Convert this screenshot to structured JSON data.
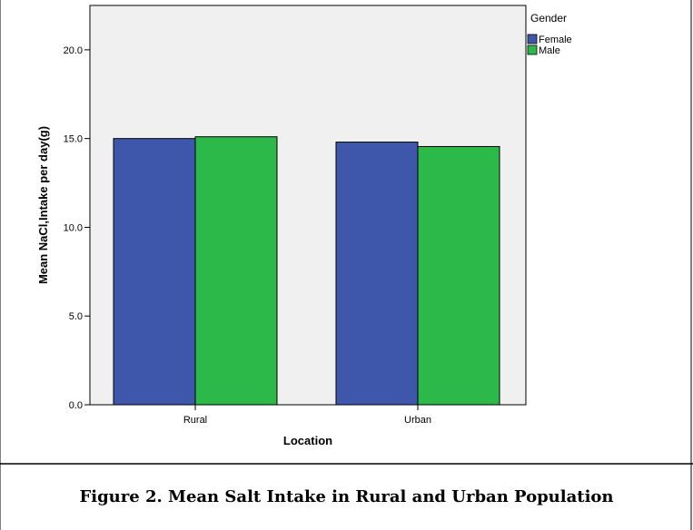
{
  "caption": "Figure 2. Mean Salt Intake in Rural and Urban Population",
  "chart_data": {
    "type": "bar",
    "categories": [
      "Rural",
      "Urban"
    ],
    "series": [
      {
        "name": "Female",
        "color": "#3f57aa",
        "values": [
          15.0,
          14.8
        ]
      },
      {
        "name": "Male",
        "color": "#2db84a",
        "values": [
          15.1,
          14.55
        ]
      }
    ],
    "xlabel": "Location",
    "ylabel": "Mean NaCl,Intake per day(g)",
    "yticks": [
      "0.0",
      "5.0",
      "10.0",
      "15.0",
      "20.0"
    ],
    "ylim": [
      0,
      22.5
    ],
    "legend_title": "Gender",
    "legend_position": "top-right",
    "plot_background": "#f0f0f0",
    "grid": false
  }
}
